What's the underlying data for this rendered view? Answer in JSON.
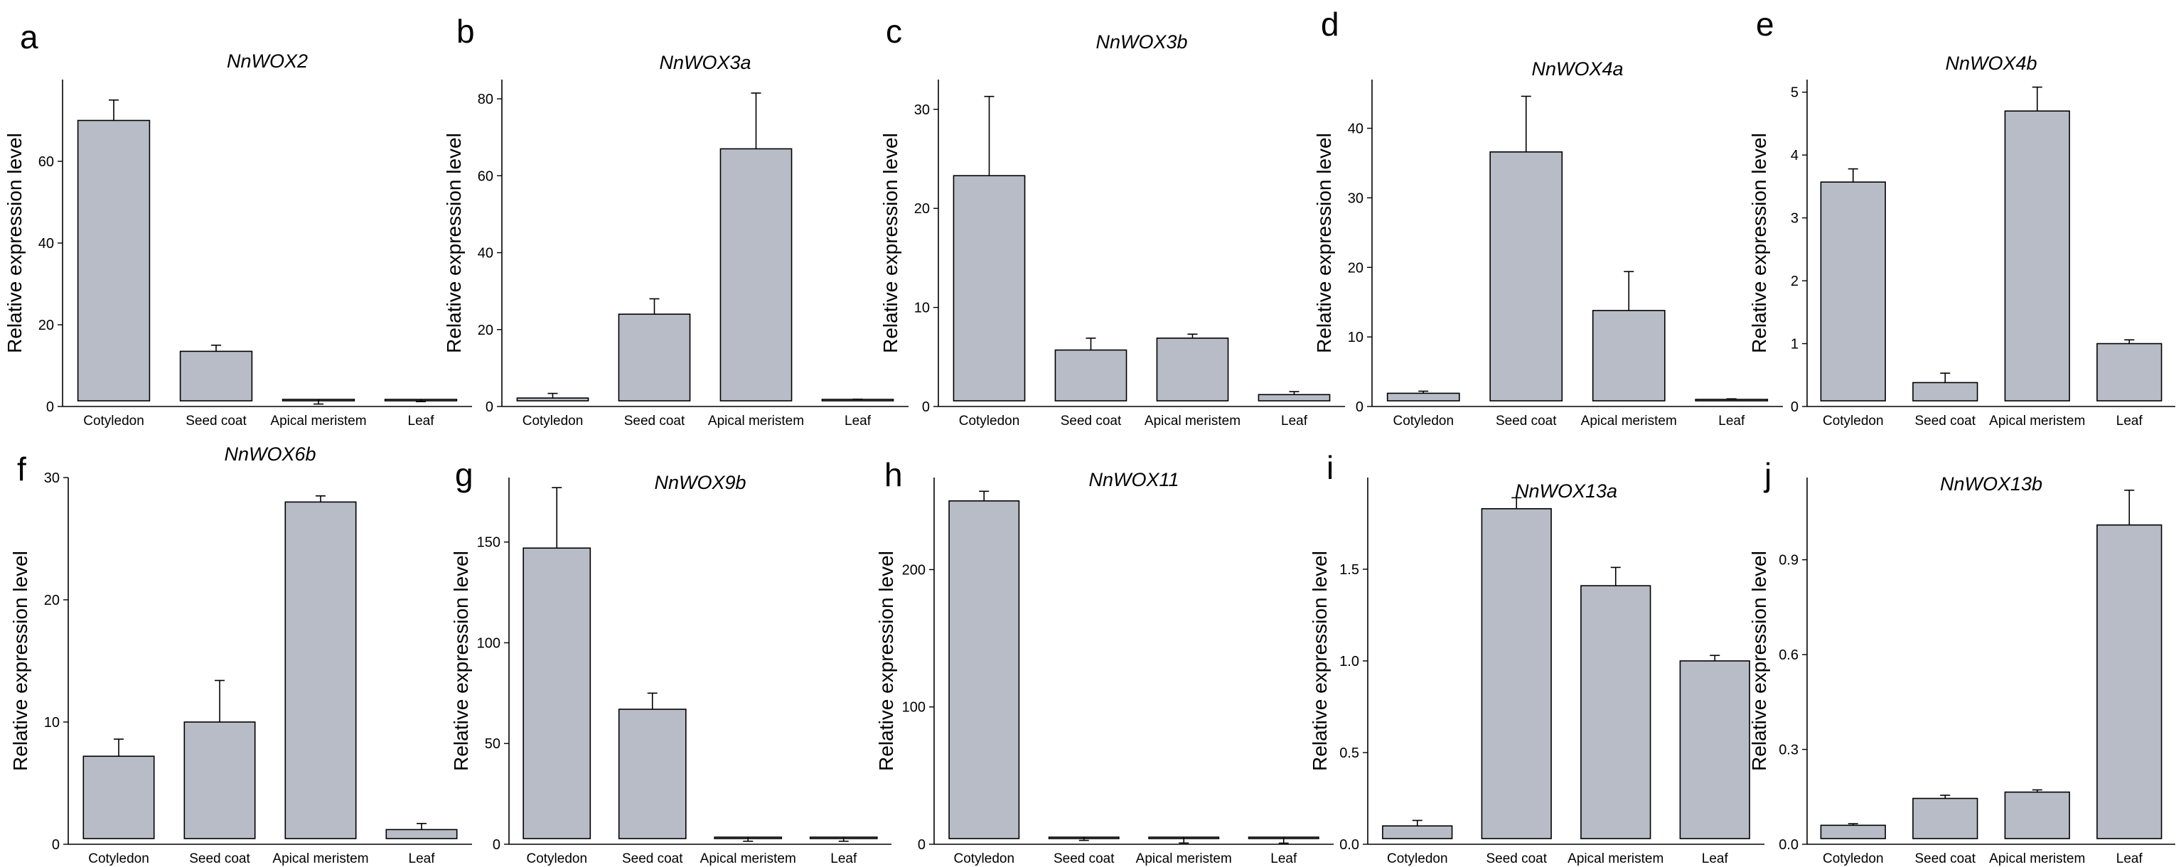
{
  "figure": {
    "bar_color": "#b8bcc6",
    "bar_stroke": "#000000",
    "ylabel": "Relative expression level",
    "categories": [
      "Cotyledon",
      "Seed coat",
      "Apical meristem",
      "Leaf"
    ]
  },
  "chart_data": [
    {
      "letter": "a",
      "type": "bar",
      "title": "NnWOX2",
      "ylabel": "Relative expression level",
      "categories": [
        "Cotyledon",
        "Seed coat",
        "Apical meristem",
        "Leaf"
      ],
      "values": [
        70,
        13.5,
        0.4,
        1
      ],
      "errors": [
        5,
        1.5,
        0.2,
        0.2
      ],
      "ylim": [
        0,
        80
      ],
      "yticks": [
        0,
        20,
        40,
        60
      ],
      "grid": false
    },
    {
      "letter": "b",
      "type": "bar",
      "title": "NnWOX3a",
      "ylabel": "Relative expression level",
      "categories": [
        "Cotyledon",
        "Seed coat",
        "Apical meristem",
        "Leaf"
      ],
      "values": [
        2.2,
        24,
        67,
        1.4
      ],
      "errors": [
        1.2,
        4,
        14.5,
        0.5
      ],
      "ylim": [
        0,
        85
      ],
      "yticks": [
        0,
        20,
        40,
        60,
        80
      ],
      "grid": false
    },
    {
      "letter": "c",
      "type": "bar",
      "title": "NnWOX3b",
      "ylabel": "Relative expression level",
      "categories": [
        "Cotyledon",
        "Seed coat",
        "Apical meristem",
        "Leaf"
      ],
      "values": [
        23.3,
        5.7,
        6.9,
        1.2
      ],
      "errors": [
        8,
        1.2,
        0.4,
        0.3
      ],
      "ylim": [
        0,
        33
      ],
      "yticks": [
        0,
        10,
        20,
        30
      ],
      "grid": false
    },
    {
      "letter": "d",
      "type": "bar",
      "title": "NnWOX4a",
      "ylabel": "Relative expression level",
      "categories": [
        "Cotyledon",
        "Seed coat",
        "Apical meristem",
        "Leaf"
      ],
      "values": [
        1.9,
        36.6,
        13.8,
        1.0
      ],
      "errors": [
        0.3,
        8,
        5.6,
        0.1
      ],
      "ylim": [
        0,
        47
      ],
      "yticks": [
        0,
        10,
        20,
        30,
        40
      ],
      "grid": false
    },
    {
      "letter": "e",
      "type": "bar",
      "title": "NnWOX4b",
      "ylabel": "Relative expression level",
      "categories": [
        "Cotyledon",
        "Seed coat",
        "Apical meristem",
        "Leaf"
      ],
      "values": [
        3.57,
        0.38,
        4.7,
        1.0
      ],
      "errors": [
        0.21,
        0.15,
        0.38,
        0.06
      ],
      "ylim": [
        0,
        5.2
      ],
      "yticks": [
        0,
        1,
        2,
        3,
        4,
        5
      ],
      "grid": false
    },
    {
      "letter": "f",
      "type": "bar",
      "title": "NnWOX6b",
      "ylabel": "Relative expression level",
      "categories": [
        "Cotyledon",
        "Seed coat",
        "Apical meristem",
        "Leaf"
      ],
      "values": [
        7.2,
        10,
        28,
        1.2
      ],
      "errors": [
        1.4,
        3.4,
        0.5,
        0.5
      ],
      "ylim": [
        0,
        30
      ],
      "yticks": [
        0,
        10,
        20,
        30
      ],
      "grid": false
    },
    {
      "letter": "g",
      "type": "bar",
      "title": "NnWOX9b",
      "ylabel": "Relative expression level",
      "categories": [
        "Cotyledon",
        "Seed coat",
        "Apical meristem",
        "Leaf"
      ],
      "values": [
        147,
        67,
        1,
        1
      ],
      "errors": [
        30,
        8,
        0.5,
        0.5
      ],
      "ylim": [
        0,
        182
      ],
      "yticks": [
        0,
        50,
        100,
        150
      ],
      "grid": false
    },
    {
      "letter": "h",
      "type": "bar",
      "title": "NnWOX11",
      "ylabel": "Relative expression level",
      "categories": [
        "Cotyledon",
        "Seed coat",
        "Apical meristem",
        "Leaf"
      ],
      "values": [
        250,
        2,
        0.6,
        0.5
      ],
      "errors": [
        7,
        0.8,
        0.3,
        0.3
      ],
      "ylim": [
        0,
        267
      ],
      "yticks": [
        0,
        100,
        200
      ],
      "grid": false
    },
    {
      "letter": "i",
      "type": "bar",
      "title": "NnWOX13a",
      "ylabel": "Relative expression level",
      "categories": [
        "Cotyledon",
        "Seed coat",
        "Apical meristem",
        "Leaf"
      ],
      "values": [
        0.1,
        1.83,
        1.41,
        1.0
      ],
      "errors": [
        0.03,
        0.06,
        0.1,
        0.03
      ],
      "ylim": [
        0,
        2.0
      ],
      "yticks": [
        0,
        0.5,
        1.0,
        1.5
      ],
      "yticks_text": [
        "0.0",
        "0.5",
        "1.0",
        "1.5"
      ],
      "grid": false
    },
    {
      "letter": "j",
      "type": "bar",
      "title": "NnWOX13b",
      "ylabel": "Relative expression level",
      "categories": [
        "Cotyledon",
        "Seed coat",
        "Apical meristem",
        "Leaf"
      ],
      "values": [
        0.06,
        0.145,
        0.165,
        1.01
      ],
      "errors": [
        0.005,
        0.01,
        0.007,
        0.11
      ],
      "ylim": [
        0,
        1.16
      ],
      "yticks": [
        0,
        0.3,
        0.6,
        0.9
      ],
      "yticks_text": [
        "0.0",
        "0.3",
        "0.6",
        "0.9"
      ],
      "grid": false
    }
  ]
}
